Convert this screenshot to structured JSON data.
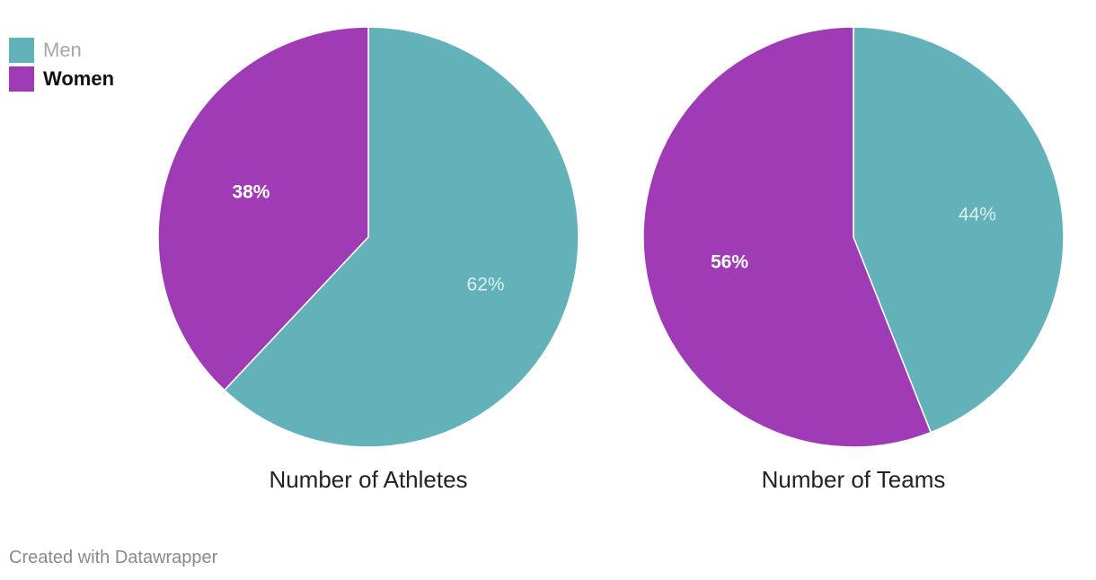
{
  "legend": [
    {
      "label": "Men",
      "color": "#64b2b9"
    },
    {
      "label": "Women",
      "color": "#a03bb6"
    }
  ],
  "chart_data": [
    {
      "type": "pie",
      "title": "Number of Athletes",
      "slices": [
        {
          "label": "Men",
          "value": 62,
          "value_label": "62%",
          "color": "#64b2b9"
        },
        {
          "label": "Women",
          "value": 38,
          "value_label": "38%",
          "color": "#a03bb6"
        }
      ]
    },
    {
      "type": "pie",
      "title": "Number of Teams",
      "slices": [
        {
          "label": "Men",
          "value": 44,
          "value_label": "44%",
          "color": "#64b2b9"
        },
        {
          "label": "Women",
          "value": 56,
          "value_label": "56%",
          "color": "#a03bb6"
        }
      ]
    }
  ],
  "footer": {
    "text": "Created with Datawrapper"
  }
}
